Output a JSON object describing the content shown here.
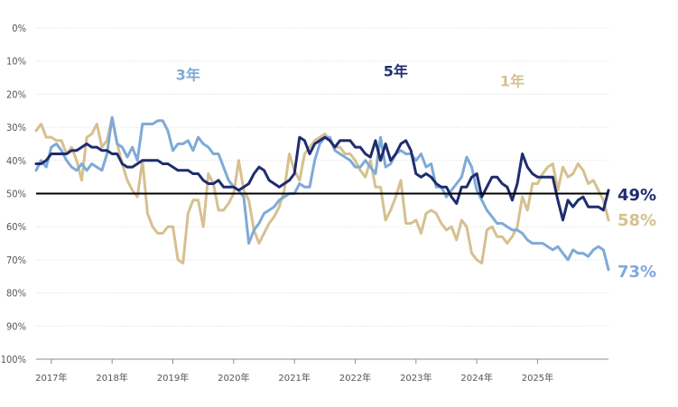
{
  "chart_data": {
    "type": "line",
    "ylim": [
      0,
      100
    ],
    "y_inverted": true,
    "y_ticks": [
      "0%",
      "10%",
      "20%",
      "30%",
      "40%",
      "50%",
      "60%",
      "70%",
      "80%",
      "90%",
      "100%"
    ],
    "x_ticks": [
      "2017年",
      "2018年",
      "2019年",
      "2020年",
      "2021年",
      "2022年",
      "2023年",
      "2024年",
      "2025年"
    ],
    "x_start": "2016-10",
    "reference_line": 50,
    "grid": true,
    "series": [
      {
        "name": "1年",
        "color": "#d6c08f",
        "end_label": "58%",
        "values": [
          31,
          29,
          33,
          33,
          34,
          34,
          38,
          36,
          40,
          46,
          33,
          32,
          29,
          36,
          34,
          27,
          35,
          41,
          46,
          49,
          51,
          40,
          56,
          60,
          62,
          62,
          60,
          60,
          70,
          71,
          56,
          52,
          52,
          60,
          44,
          47,
          55,
          55,
          53,
          50,
          40,
          49,
          52,
          61,
          65,
          62,
          59,
          57,
          54,
          49,
          38,
          43,
          46,
          38,
          36,
          34,
          33,
          32,
          34,
          36,
          36,
          38,
          38,
          40,
          43,
          45,
          40,
          48,
          48,
          58,
          55,
          51,
          46,
          59,
          59,
          58,
          62,
          56,
          55,
          56,
          59,
          61,
          60,
          64,
          58,
          60,
          68,
          70,
          71,
          61,
          60,
          63,
          63,
          65,
          63,
          60,
          51,
          55,
          47,
          47,
          44,
          42,
          41,
          49,
          42,
          45,
          44,
          41,
          43,
          47,
          46,
          49,
          52,
          58
        ]
      },
      {
        "name": "3年",
        "color": "#7eaad6",
        "end_label": "73%",
        "values": [
          43,
          40,
          42,
          36,
          35,
          37,
          40,
          42,
          43,
          41,
          43,
          41,
          42,
          43,
          38,
          27,
          35,
          36,
          39,
          36,
          40,
          29,
          29,
          29,
          28,
          28,
          31,
          37,
          35,
          35,
          34,
          37,
          33,
          35,
          36,
          38,
          38,
          42,
          46,
          48,
          49,
          51,
          65,
          61,
          59,
          56,
          55,
          54,
          52,
          51,
          50,
          50,
          47,
          48,
          48,
          40,
          35,
          33,
          33,
          37,
          38,
          39,
          40,
          42,
          42,
          40,
          42,
          44,
          33,
          42,
          41,
          38,
          37,
          38,
          38,
          40,
          38,
          42,
          41,
          48,
          48,
          51,
          49,
          47,
          45,
          39,
          42,
          49,
          52,
          55,
          57,
          59,
          59,
          60,
          61,
          61,
          62,
          64,
          65,
          65,
          65,
          66,
          67,
          66,
          68,
          70,
          67,
          68,
          68,
          69,
          67,
          66,
          67,
          73
        ]
      },
      {
        "name": "5年",
        "color": "#1f2d6e",
        "end_label": "49%",
        "values": [
          41,
          41,
          40,
          38,
          38,
          38,
          38,
          37,
          37,
          36,
          35,
          36,
          36,
          37,
          37,
          38,
          38,
          41,
          42,
          42,
          41,
          40,
          40,
          40,
          40,
          41,
          41,
          42,
          43,
          43,
          43,
          44,
          44,
          46,
          47,
          47,
          46,
          48,
          48,
          48,
          49,
          48,
          47,
          44,
          42,
          43,
          46,
          47,
          48,
          47,
          46,
          44,
          33,
          34,
          38,
          35,
          34,
          33,
          34,
          36,
          34,
          34,
          34,
          36,
          36,
          38,
          39,
          34,
          40,
          35,
          40,
          38,
          35,
          34,
          37,
          44,
          45,
          44,
          45,
          47,
          48,
          48,
          51,
          53,
          48,
          48,
          45,
          44,
          51,
          48,
          45,
          45,
          47,
          48,
          52,
          47,
          38,
          42,
          44,
          45,
          45,
          45,
          45,
          52,
          58,
          52,
          54,
          52,
          51,
          54,
          54,
          54,
          55,
          49
        ]
      }
    ]
  }
}
